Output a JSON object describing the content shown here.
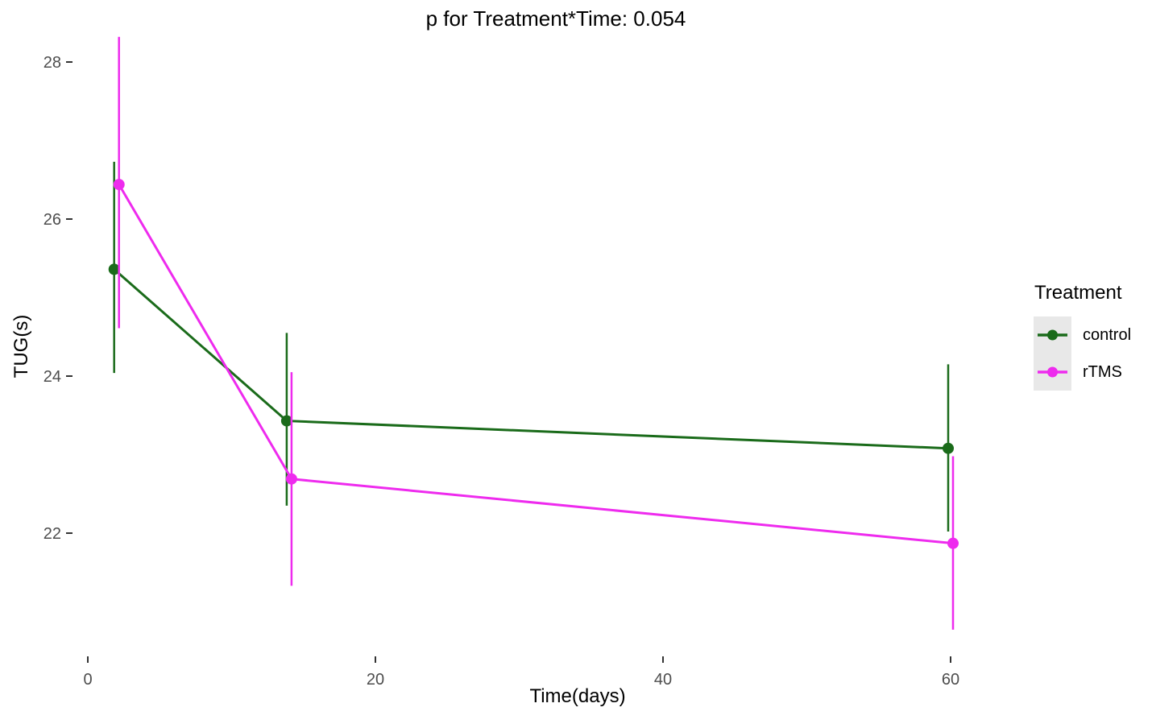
{
  "chart_data": {
    "type": "line",
    "title": "p for Treatment*Time: 0.054",
    "xlabel": "Time(days)",
    "ylabel": "TUG(s)",
    "x_ticks": [
      0,
      20,
      40,
      60
    ],
    "y_ticks": [
      22,
      24,
      26,
      28
    ],
    "xlim": [
      -1,
      64
    ],
    "ylim": [
      20.4,
      28.7
    ],
    "grid": false,
    "error_bars": "vertical lines without caps",
    "legend": {
      "title": "Treatment",
      "position": "right",
      "key_fill": "#e8e8e8"
    },
    "series": [
      {
        "name": "control",
        "color": "#1a6b1a",
        "x": [
          2,
          14,
          60
        ],
        "y": [
          25.36,
          23.43,
          23.08
        ],
        "y_low": [
          24.04,
          22.35,
          22.02
        ],
        "y_high": [
          26.73,
          24.55,
          24.15
        ]
      },
      {
        "name": "rTMS",
        "color": "#ee2bee",
        "x": [
          2,
          14,
          60
        ],
        "y": [
          26.44,
          22.69,
          21.87
        ],
        "y_low": [
          24.61,
          21.33,
          20.77
        ],
        "y_high": [
          28.32,
          24.05,
          22.98
        ]
      }
    ],
    "colors": {
      "tick_label": "#4d4d4d",
      "tick_mark": "#333333",
      "text": "#000000",
      "background": "#ffffff"
    }
  }
}
